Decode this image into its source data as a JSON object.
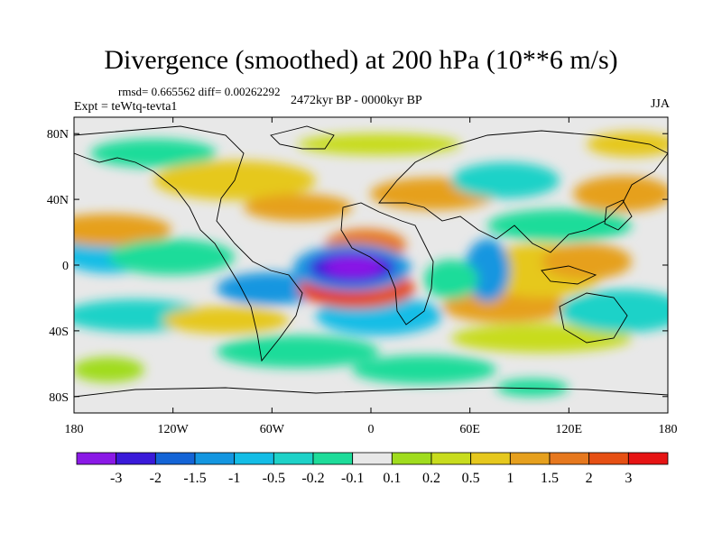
{
  "title": "Divergence (smoothed) at 200 hPa (10**6 m/s)",
  "stats": "rmsd= 0.665562 diff= 0.00262292",
  "experiment": "Expt = teWtq-tevta1",
  "period": "2472kyr BP - 0000kyr BP",
  "season": "JJA",
  "axes": {
    "y_ticks": [
      {
        "label": "80N",
        "lat": 80
      },
      {
        "label": "40N",
        "lat": 40
      },
      {
        "label": "0",
        "lat": 0
      },
      {
        "label": "40S",
        "lat": -40
      },
      {
        "label": "80S",
        "lat": -80
      }
    ],
    "x_ticks": [
      {
        "label": "180",
        "lon": -180
      },
      {
        "label": "120W",
        "lon": -120
      },
      {
        "label": "60W",
        "lon": -60
      },
      {
        "label": "0",
        "lon": 0
      },
      {
        "label": "60E",
        "lon": 60
      },
      {
        "label": "120E",
        "lon": 120
      },
      {
        "label": "180",
        "lon": 180
      }
    ]
  },
  "colorbar": {
    "colors": [
      "#8a19e6",
      "#3a1ad9",
      "#1464d6",
      "#1496e0",
      "#14bde6",
      "#1ed2c8",
      "#1edc9a",
      "#e8e8e8",
      "#a0dc1e",
      "#c8dc1e",
      "#e6c81e",
      "#e6a01e",
      "#e6781e",
      "#e65014",
      "#e61414"
    ],
    "labels": [
      "-3",
      "-2",
      "-1.5",
      "-1",
      "-0.5",
      "-0.2",
      "-0.1",
      "0.1",
      "0.2",
      "0.5",
      "1",
      "1.5",
      "2",
      "3"
    ]
  },
  "icons": {
    "coastlines": "world-coastline-outline"
  }
}
